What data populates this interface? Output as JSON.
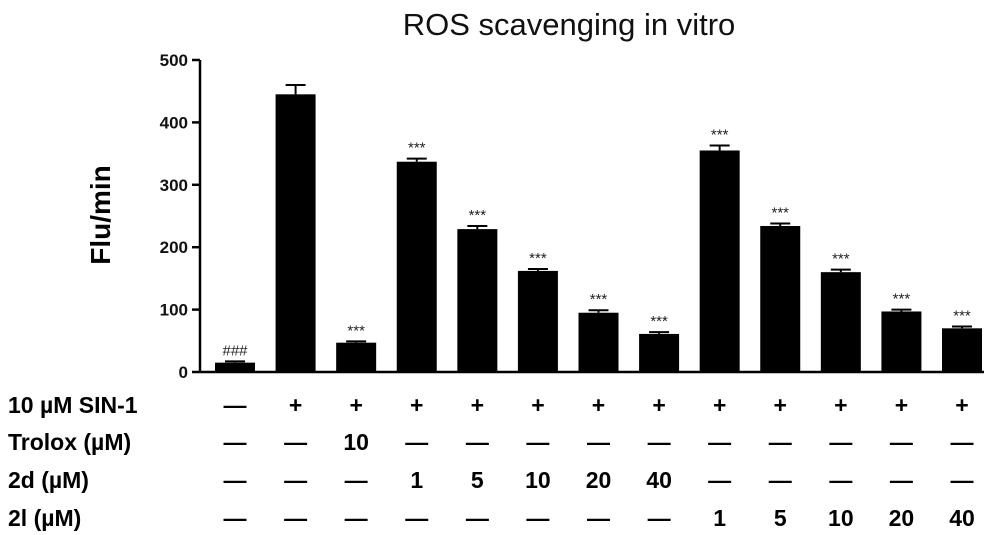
{
  "chart_data": {
    "type": "bar",
    "title": "ROS scavenging in vitro",
    "ylabel": "Flu/min",
    "ylim": [
      0,
      500
    ],
    "yticks": [
      "0",
      "100",
      "200",
      "300",
      "400",
      "500"
    ],
    "series": [
      {
        "values": [
          15,
          445,
          47,
          337,
          229,
          162,
          95,
          61,
          355,
          234,
          160,
          97,
          70
        ],
        "errors": [
          2,
          15,
          2,
          5,
          5,
          3,
          4,
          3,
          8,
          4,
          4,
          3,
          3
        ],
        "annotations": [
          "###",
          "",
          "***",
          "***",
          "***",
          "***",
          "***",
          "***",
          "***",
          "***",
          "***",
          "***",
          "***"
        ]
      }
    ],
    "treatment_table": [
      {
        "label": "10 µM SIN-1",
        "cells": [
          "—",
          "+",
          "+",
          "+",
          "+",
          "+",
          "+",
          "+",
          "+",
          "+",
          "+",
          "+",
          "+"
        ]
      },
      {
        "label": "Trolox (µM)",
        "cells": [
          "—",
          "—",
          "10",
          "—",
          "—",
          "—",
          "—",
          "—",
          "—",
          "—",
          "—",
          "—",
          "—"
        ]
      },
      {
        "label": "2d (µM)",
        "cells": [
          "—",
          "—",
          "—",
          "1",
          "5",
          "10",
          "20",
          "40",
          "—",
          "—",
          "—",
          "—",
          "—"
        ]
      },
      {
        "label": "2l (µM)",
        "cells": [
          "—",
          "—",
          "—",
          "—",
          "—",
          "—",
          "—",
          "—",
          "1",
          "5",
          "10",
          "20",
          "40"
        ]
      }
    ],
    "colors": {
      "bar": "#000000",
      "axis": "#000000"
    },
    "grid": false,
    "legend": "none"
  }
}
